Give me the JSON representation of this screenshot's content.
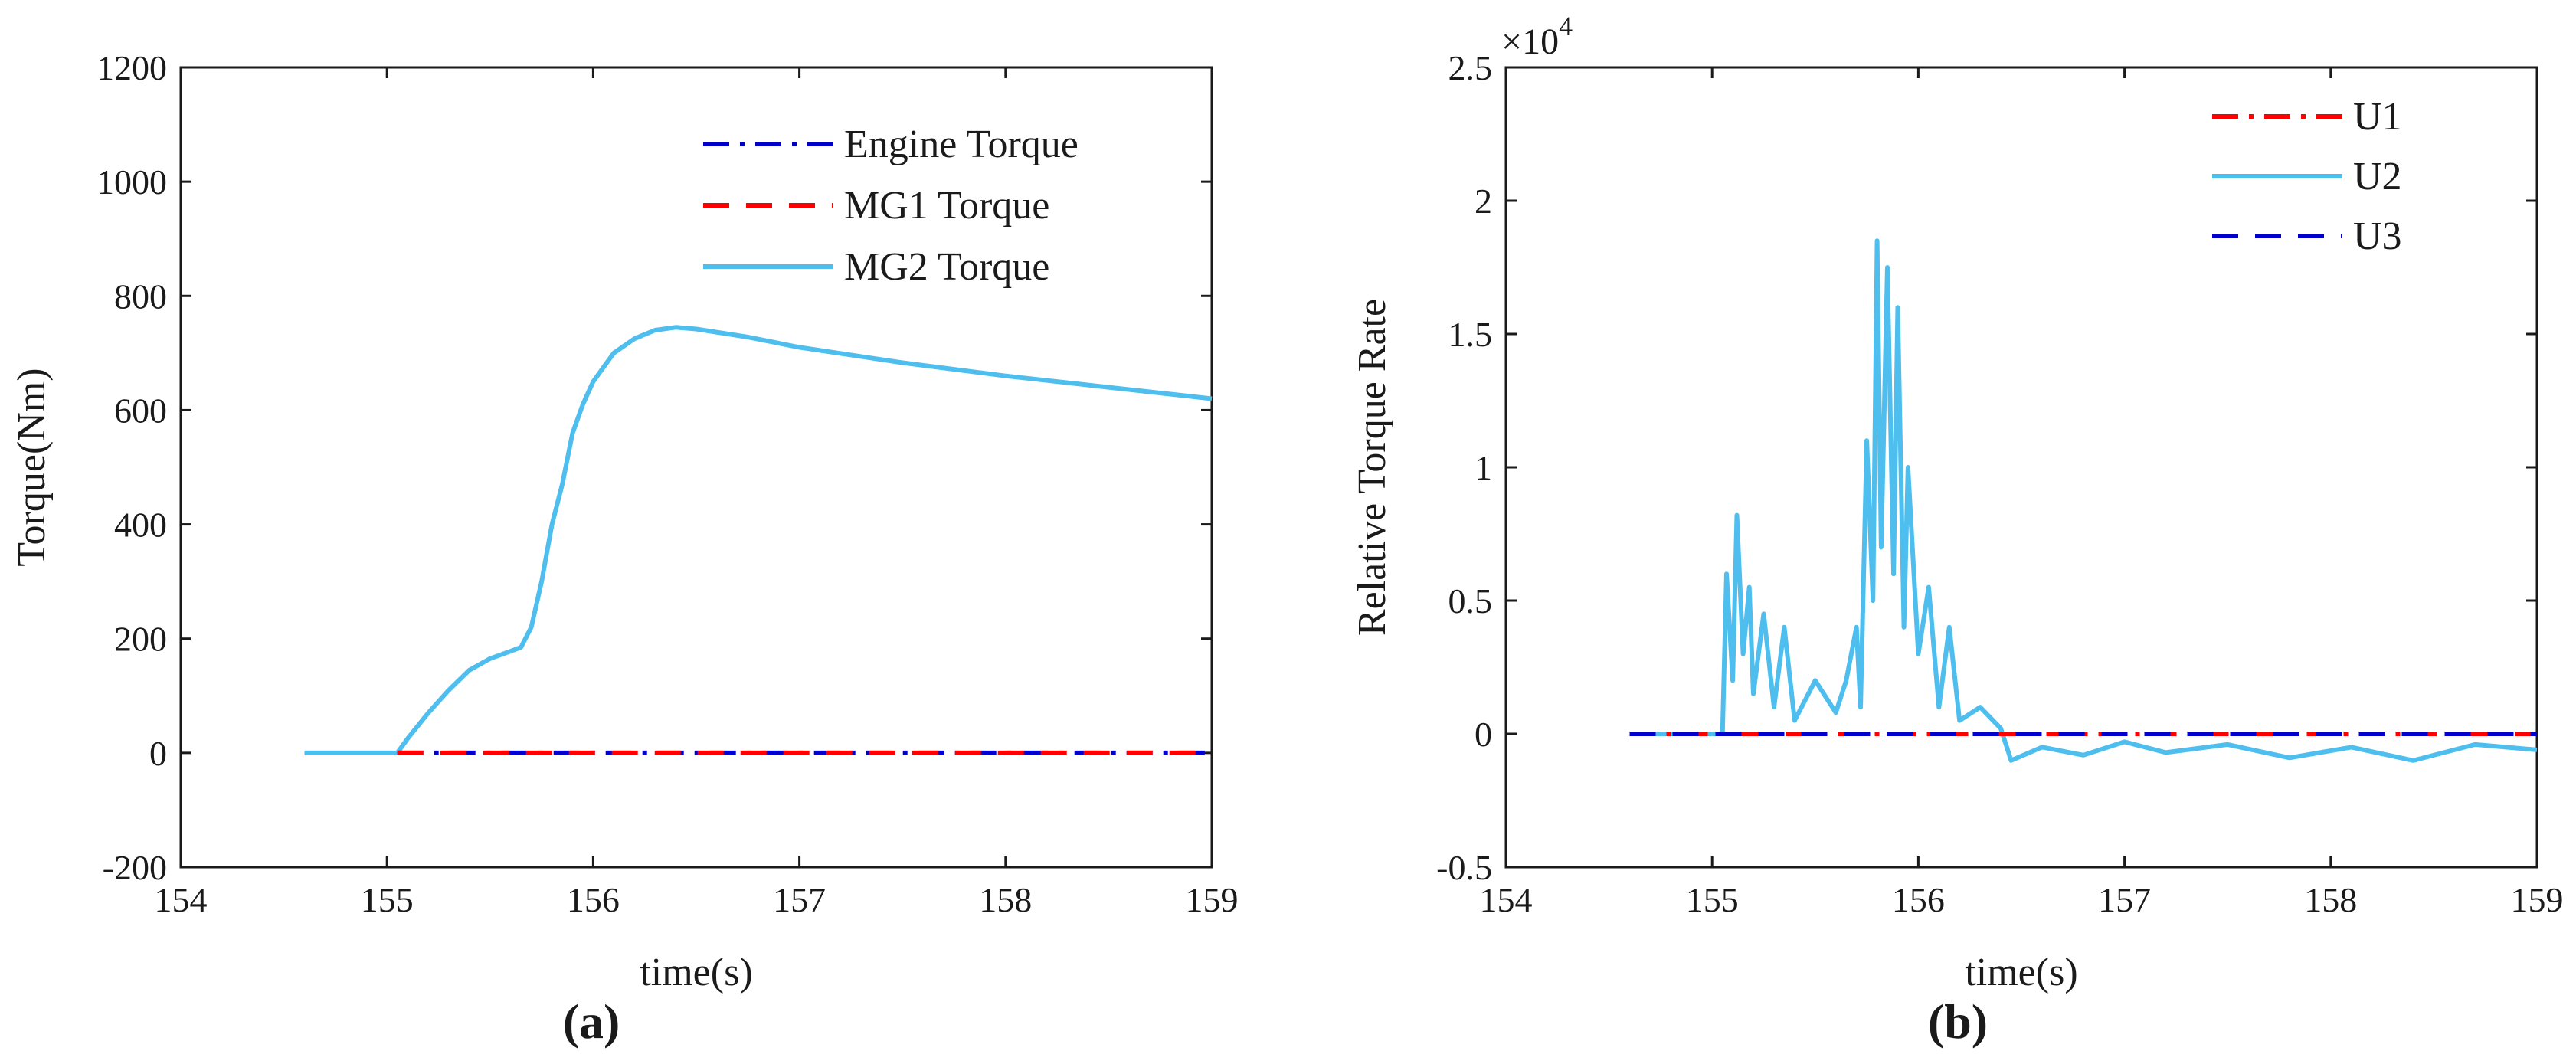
{
  "chart_data": [
    {
      "type": "line",
      "caption": "(a)",
      "xlabel": "time(s)",
      "ylabel": "Torque(Nm)",
      "xlim": [
        154,
        159
      ],
      "ylim": [
        -200,
        1200
      ],
      "xticks": [
        154,
        155,
        156,
        157,
        158,
        159
      ],
      "yticks": [
        -200,
        0,
        200,
        400,
        600,
        800,
        1000,
        1200
      ],
      "legend_position": "top-right",
      "series": [
        {
          "name": "Engine Torque",
          "color": "#0000cc",
          "style": "dash-dot",
          "points": [
            [
              155.05,
              0
            ],
            [
              159,
              0
            ]
          ]
        },
        {
          "name": "MG1 Torque",
          "color": "#ff0000",
          "style": "dashed",
          "points": [
            [
              155.05,
              0
            ],
            [
              159,
              0
            ]
          ]
        },
        {
          "name": "MG2 Torque",
          "color": "#4dbeee",
          "style": "solid",
          "points": [
            [
              154.6,
              0
            ],
            [
              155.05,
              0
            ],
            [
              155.1,
              25
            ],
            [
              155.2,
              70
            ],
            [
              155.3,
              110
            ],
            [
              155.4,
              145
            ],
            [
              155.5,
              165
            ],
            [
              155.6,
              178
            ],
            [
              155.65,
              185
            ],
            [
              155.7,
              220
            ],
            [
              155.75,
              300
            ],
            [
              155.8,
              400
            ],
            [
              155.85,
              470
            ],
            [
              155.9,
              560
            ],
            [
              155.95,
              610
            ],
            [
              156.0,
              650
            ],
            [
              156.1,
              700
            ],
            [
              156.2,
              725
            ],
            [
              156.3,
              740
            ],
            [
              156.4,
              745
            ],
            [
              156.5,
              742
            ],
            [
              156.75,
              728
            ],
            [
              157.0,
              710
            ],
            [
              157.5,
              683
            ],
            [
              158.0,
              660
            ],
            [
              158.5,
              640
            ],
            [
              159.0,
              620
            ]
          ]
        }
      ]
    },
    {
      "type": "line",
      "caption": "(b)",
      "xlabel": "time(s)",
      "ylabel": "Relative Torque Rate",
      "y_exponent": "×10",
      "y_exponent_power": "4",
      "xlim": [
        154,
        159
      ],
      "ylim": [
        -0.5,
        2.5
      ],
      "xticks": [
        154,
        155,
        156,
        157,
        158,
        159
      ],
      "yticks": [
        -0.5,
        0,
        0.5,
        1,
        1.5,
        2,
        2.5
      ],
      "legend_position": "top-right",
      "series": [
        {
          "name": "U1",
          "color": "#ff0000",
          "style": "dash-dot",
          "points": [
            [
              154.6,
              0
            ],
            [
              159,
              0
            ]
          ]
        },
        {
          "name": "U2",
          "color": "#4dbeee",
          "style": "solid",
          "points": [
            [
              154.6,
              0
            ],
            [
              155.05,
              0
            ],
            [
              155.07,
              0.6
            ],
            [
              155.1,
              0.2
            ],
            [
              155.12,
              0.82
            ],
            [
              155.15,
              0.3
            ],
            [
              155.18,
              0.55
            ],
            [
              155.2,
              0.15
            ],
            [
              155.25,
              0.45
            ],
            [
              155.3,
              0.1
            ],
            [
              155.35,
              0.4
            ],
            [
              155.4,
              0.05
            ],
            [
              155.5,
              0.2
            ],
            [
              155.6,
              0.08
            ],
            [
              155.65,
              0.2
            ],
            [
              155.7,
              0.4
            ],
            [
              155.72,
              0.1
            ],
            [
              155.75,
              1.1
            ],
            [
              155.78,
              0.5
            ],
            [
              155.8,
              1.85
            ],
            [
              155.82,
              0.7
            ],
            [
              155.85,
              1.75
            ],
            [
              155.88,
              0.6
            ],
            [
              155.9,
              1.6
            ],
            [
              155.93,
              0.4
            ],
            [
              155.95,
              1.0
            ],
            [
              156.0,
              0.3
            ],
            [
              156.05,
              0.55
            ],
            [
              156.1,
              0.1
            ],
            [
              156.15,
              0.4
            ],
            [
              156.2,
              0.05
            ],
            [
              156.3,
              0.1
            ],
            [
              156.4,
              0.02
            ],
            [
              156.45,
              -0.1
            ],
            [
              156.6,
              -0.05
            ],
            [
              156.8,
              -0.08
            ],
            [
              157.0,
              -0.03
            ],
            [
              157.2,
              -0.07
            ],
            [
              157.5,
              -0.04
            ],
            [
              157.8,
              -0.09
            ],
            [
              158.1,
              -0.05
            ],
            [
              158.4,
              -0.1
            ],
            [
              158.7,
              -0.04
            ],
            [
              159.0,
              -0.06
            ]
          ]
        },
        {
          "name": "U3",
          "color": "#0000cc",
          "style": "dashed",
          "points": [
            [
              154.6,
              0
            ],
            [
              159,
              0
            ]
          ]
        }
      ]
    }
  ]
}
